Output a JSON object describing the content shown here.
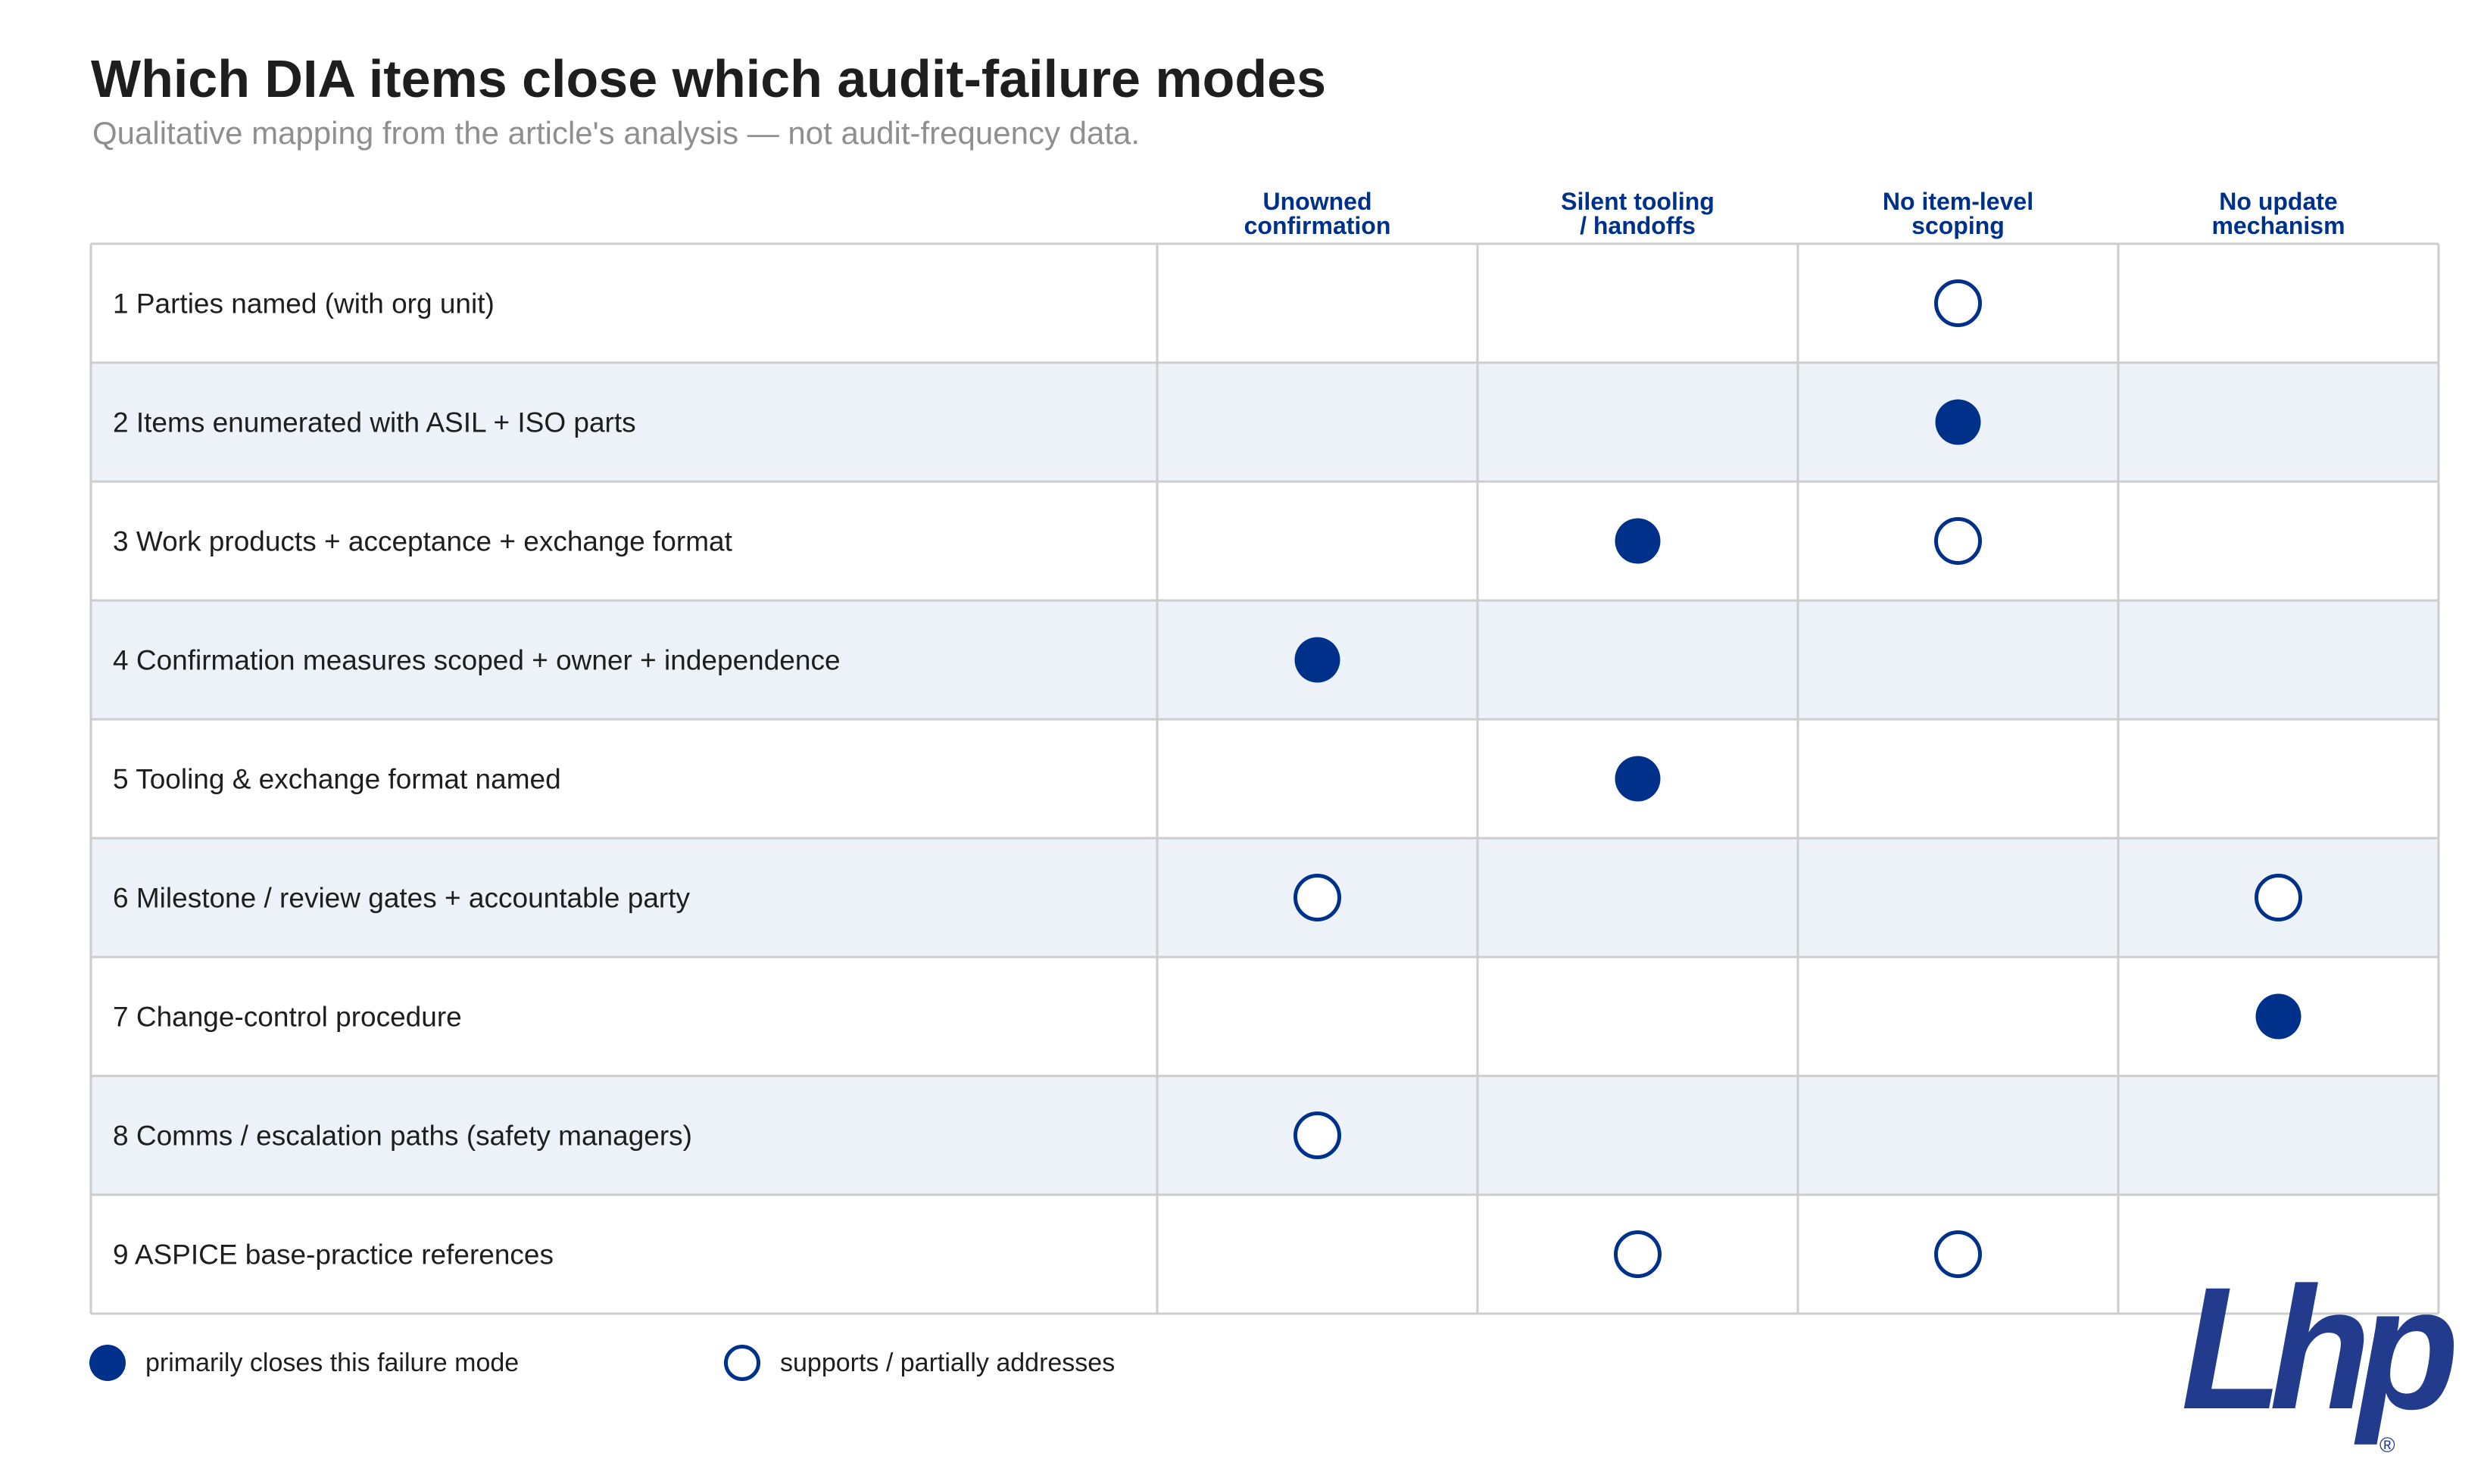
{
  "chart_data": {
    "type": "table",
    "title": "Which DIA items close which audit-failure modes",
    "subtitle": "Qualitative mapping from the article's analysis — not audit-frequency data.",
    "columns": [
      [
        "Unowned",
        "confirmation"
      ],
      [
        "Silent tooling",
        "/ handoffs"
      ],
      [
        "No item-level",
        "scoping"
      ],
      [
        "No update",
        "mechanism"
      ]
    ],
    "rows": [
      {
        "label": "1 Parties named (with org unit)",
        "cells": [
          "",
          "",
          "support",
          ""
        ]
      },
      {
        "label": "2 Items enumerated with ASIL + ISO parts",
        "cells": [
          "",
          "",
          "primary",
          ""
        ]
      },
      {
        "label": "3 Work products + acceptance + exchange format",
        "cells": [
          "",
          "primary",
          "support",
          ""
        ]
      },
      {
        "label": "4 Confirmation measures scoped + owner + independence",
        "cells": [
          "primary",
          "",
          "",
          ""
        ]
      },
      {
        "label": "5 Tooling & exchange format named",
        "cells": [
          "",
          "primary",
          "",
          ""
        ]
      },
      {
        "label": "6 Milestone / review gates + accountable party",
        "cells": [
          "support",
          "",
          "",
          "support"
        ]
      },
      {
        "label": "7 Change-control procedure",
        "cells": [
          "",
          "",
          "",
          "primary"
        ]
      },
      {
        "label": "8 Comms / escalation paths (safety managers)",
        "cells": [
          "support",
          "",
          "",
          ""
        ]
      },
      {
        "label": "9 ASPICE base-practice references",
        "cells": [
          "",
          "support",
          "support",
          ""
        ]
      }
    ],
    "legend": [
      {
        "key": "primary",
        "label": "primarily closes this failure mode"
      },
      {
        "key": "support",
        "label": "supports / partially addresses"
      }
    ],
    "grid": true,
    "legend_position": "bottom-left"
  },
  "colors": {
    "accent": "#00318a",
    "logo": "#233b8c",
    "stripe": "#edf2f9",
    "grid": "#cdcdcd",
    "text": "#1e1e1e",
    "subtitle": "#8f8f8f"
  },
  "logo": {
    "name": "lhp-logo-icon",
    "text": "Lhp"
  }
}
